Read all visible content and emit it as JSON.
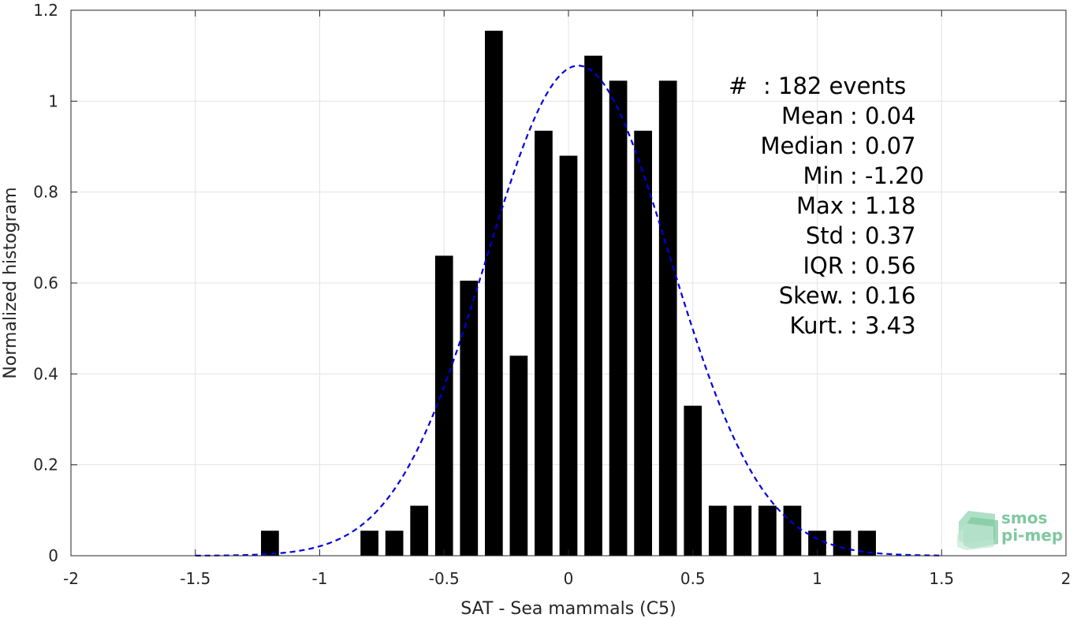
{
  "chart_data": {
    "type": "bar",
    "xlabel": "SAT - Sea mammals (C5)",
    "ylabel": "Normalized histogram",
    "xlim": [
      -2,
      2
    ],
    "ylim": [
      0,
      1.2
    ],
    "xticks": [
      "-2",
      "-1.5",
      "-1",
      "-0.5",
      "0",
      "0.5",
      "1",
      "1.5",
      "2"
    ],
    "yticks": [
      "0",
      "0.2",
      "0.4",
      "0.6",
      "0.8",
      "1",
      "1.2"
    ],
    "grid": true,
    "bar_color": "#000000",
    "bin_width": 0.1,
    "bars": [
      {
        "x": -1.2,
        "y": 0.055
      },
      {
        "x": -0.8,
        "y": 0.055
      },
      {
        "x": -0.7,
        "y": 0.055
      },
      {
        "x": -0.6,
        "y": 0.11
      },
      {
        "x": -0.5,
        "y": 0.66
      },
      {
        "x": -0.4,
        "y": 0.605
      },
      {
        "x": -0.3,
        "y": 1.155
      },
      {
        "x": -0.2,
        "y": 0.44
      },
      {
        "x": -0.1,
        "y": 0.935
      },
      {
        "x": 0.0,
        "y": 0.88
      },
      {
        "x": 0.1,
        "y": 1.1
      },
      {
        "x": 0.2,
        "y": 1.045
      },
      {
        "x": 0.3,
        "y": 0.935
      },
      {
        "x": 0.4,
        "y": 1.045
      },
      {
        "x": 0.5,
        "y": 0.33
      },
      {
        "x": 0.6,
        "y": 0.11
      },
      {
        "x": 0.7,
        "y": 0.11
      },
      {
        "x": 0.8,
        "y": 0.11
      },
      {
        "x": 0.9,
        "y": 0.11
      },
      {
        "x": 1.0,
        "y": 0.055
      },
      {
        "x": 1.1,
        "y": 0.055
      },
      {
        "x": 1.2,
        "y": 0.055
      }
    ],
    "fit_curve": {
      "style": "dashed",
      "color": "#0000dd",
      "x_range": [
        -1.5,
        1.5
      ],
      "mean": 0.04,
      "std": 0.37
    },
    "annotations": [
      {
        "label": "#",
        "value": ": 182 events"
      },
      {
        "label": "Mean",
        "value": ": 0.04"
      },
      {
        "label": "Median",
        "value": ": 0.07"
      },
      {
        "label": "Min",
        "value": ": -1.20"
      },
      {
        "label": "Max",
        "value": ": 1.18"
      },
      {
        "label": "Std",
        "value": ": 0.37"
      },
      {
        "label": "IQR",
        "value": ": 0.56"
      },
      {
        "label": "Skew.",
        "value": ": 0.16"
      },
      {
        "label": "Kurt.",
        "value": ": 3.43"
      }
    ]
  },
  "logo": {
    "line1": "smos",
    "line2": "pi-mep",
    "color": "#7fc8a0"
  }
}
